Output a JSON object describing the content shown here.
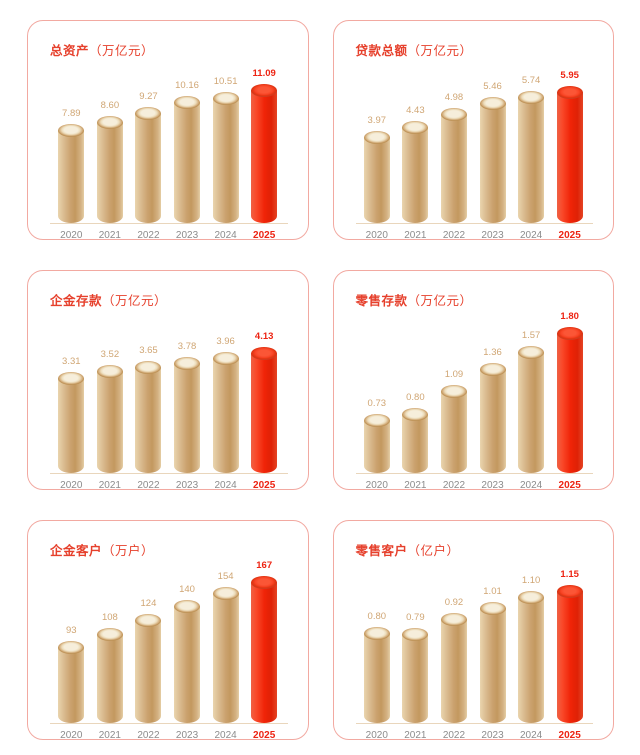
{
  "colors": {
    "card_border": "#f2a9a1",
    "title_red": "#e6402c",
    "value_label_tan": "#d0a674",
    "highlight_red": "#ed2413",
    "year_label_gray": "#8c8c8c",
    "axis_line": "#e9d6bc",
    "cylinder_tan_light": "#ead5ae",
    "cylinder_tan_dark": "#c3985f",
    "cylinder_tan_top": "#f6eedb",
    "cylinder_red_light": "#fb5c3c",
    "cylinder_red_dark": "#d8260a",
    "cylinder_red_top": "#f94526"
  },
  "chart_data": [
    {
      "type": "bar",
      "title": "总资产（万亿元）",
      "title_name": "总资产",
      "title_unit": "（万亿元）",
      "categories": [
        "2020",
        "2021",
        "2022",
        "2023",
        "2024",
        "2025"
      ],
      "values": [
        7.89,
        8.6,
        9.27,
        10.16,
        10.51,
        11.09
      ],
      "value_labels": [
        "7.89",
        "8.60",
        "9.27",
        "10.16",
        "10.51",
        "11.09"
      ],
      "ylim": [
        0,
        12
      ],
      "xlabel": "",
      "ylabel": "",
      "grid": false,
      "legend": "none",
      "highlight_index": 5
    },
    {
      "type": "bar",
      "title": "贷款总额（万亿元）",
      "title_name": "贷款总额",
      "title_unit": "（万亿元）",
      "categories": [
        "2020",
        "2021",
        "2022",
        "2023",
        "2024",
        "2025"
      ],
      "values": [
        3.97,
        4.43,
        4.98,
        5.46,
        5.74,
        5.95
      ],
      "value_labels": [
        "3.97",
        "4.43",
        "4.98",
        "5.46",
        "5.74",
        "5.95"
      ],
      "ylim": [
        0,
        6.5
      ],
      "xlabel": "",
      "ylabel": "",
      "grid": false,
      "legend": "none",
      "highlight_index": 5
    },
    {
      "type": "bar",
      "title": "企金存款（万亿元）",
      "title_name": "企金存款",
      "title_unit": "（万亿元）",
      "categories": [
        "2020",
        "2021",
        "2022",
        "2023",
        "2024",
        "2025"
      ],
      "values": [
        3.31,
        3.52,
        3.65,
        3.78,
        3.96,
        4.13
      ],
      "value_labels": [
        "3.31",
        "3.52",
        "3.65",
        "3.78",
        "3.96",
        "4.13"
      ],
      "ylim": [
        0,
        4.9
      ],
      "xlabel": "",
      "ylabel": "",
      "grid": false,
      "legend": "none",
      "highlight_index": 5
    },
    {
      "type": "bar",
      "title": "零售存款（万亿元）",
      "title_name": "零售存款",
      "title_unit": "（万亿元）",
      "categories": [
        "2020",
        "2021",
        "2022",
        "2023",
        "2024",
        "2025"
      ],
      "values": [
        0.73,
        0.8,
        1.09,
        1.36,
        1.57,
        1.8
      ],
      "value_labels": [
        "0.73",
        "0.80",
        "1.09",
        "1.36",
        "1.57",
        "1.80"
      ],
      "ylim": [
        0,
        1.85
      ],
      "xlabel": "",
      "ylabel": "",
      "grid": false,
      "legend": "none",
      "highlight_index": 5
    },
    {
      "type": "bar",
      "title": "企金客户（万户）",
      "title_name": "企金客户",
      "title_unit": "（万户）",
      "categories": [
        "2020",
        "2021",
        "2022",
        "2023",
        "2024",
        "2025"
      ],
      "values": [
        93,
        108,
        124,
        140,
        154,
        167
      ],
      "value_labels": [
        "93",
        "108",
        "124",
        "140",
        "154",
        "167"
      ],
      "ylim": [
        0,
        170
      ],
      "xlabel": "",
      "ylabel": "",
      "grid": false,
      "legend": "none",
      "highlight_index": 5
    },
    {
      "type": "bar",
      "title": "零售客户（亿户）",
      "title_name": "零售客户",
      "title_unit": "（亿户）",
      "categories": [
        "2020",
        "2021",
        "2022",
        "2023",
        "2024",
        "2025"
      ],
      "values": [
        0.8,
        0.79,
        0.92,
        1.01,
        1.1,
        1.15
      ],
      "value_labels": [
        "0.80",
        "0.79",
        "0.92",
        "1.01",
        "1.10",
        "1.15"
      ],
      "ylim": [
        0,
        1.25
      ],
      "xlabel": "",
      "ylabel": "",
      "grid": false,
      "legend": "none",
      "highlight_index": 5
    }
  ]
}
